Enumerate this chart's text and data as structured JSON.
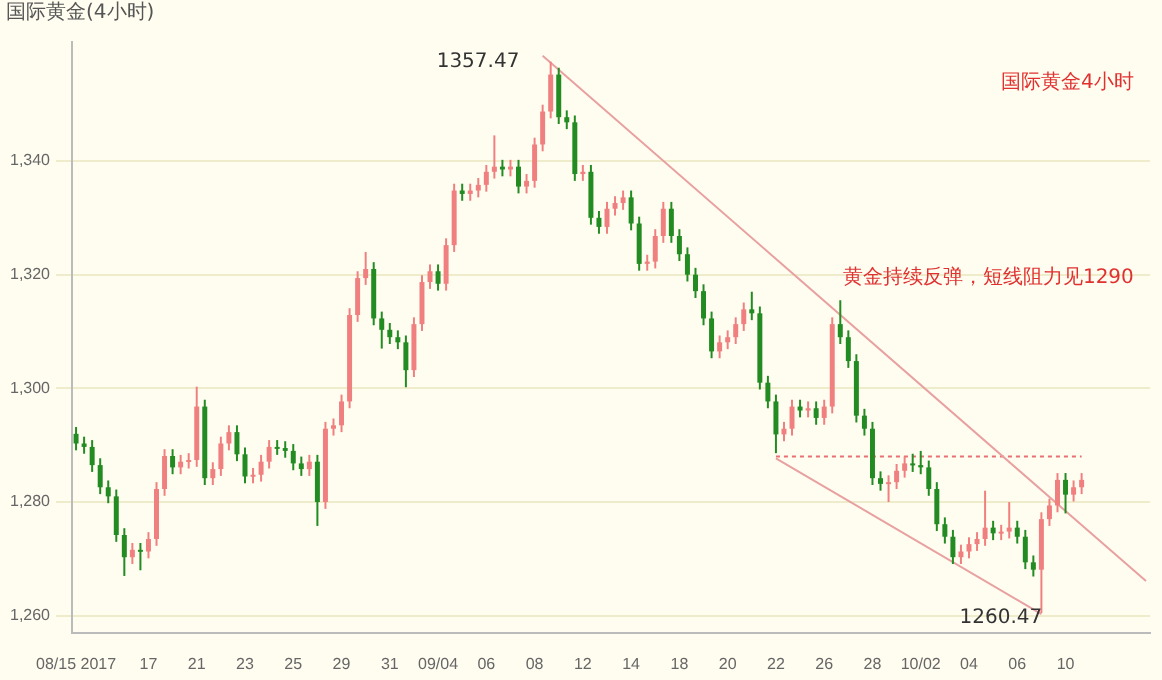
{
  "chart_data": {
    "type": "candlestick",
    "title": "国际黄金(4小时)",
    "categories": [
      "08/15 2017",
      null,
      null,
      null,
      null,
      null,
      null,
      null,
      null,
      "17",
      null,
      null,
      null,
      null,
      null,
      "21",
      null,
      null,
      null,
      null,
      null,
      "23",
      null,
      null,
      null,
      null,
      null,
      "25",
      null,
      null,
      null,
      null,
      null,
      "29",
      null,
      null,
      null,
      null,
      null,
      "31",
      null,
      null,
      null,
      null,
      null,
      "09/04",
      null,
      null,
      null,
      null,
      null,
      "06",
      null,
      null,
      null,
      null,
      null,
      "08",
      null,
      null,
      null,
      null,
      null,
      "12",
      null,
      null,
      null,
      null,
      null,
      "14",
      null,
      null,
      null,
      null,
      null,
      "18",
      null,
      null,
      null,
      null,
      null,
      "20",
      null,
      null,
      null,
      null,
      null,
      "22",
      null,
      null,
      null,
      null,
      null,
      "26",
      null,
      null,
      null,
      null,
      null,
      "28",
      null,
      null,
      null,
      null,
      null,
      "10/02",
      null,
      null,
      null,
      null,
      null,
      "04",
      null,
      null,
      null,
      null,
      null,
      "06",
      null,
      null,
      null,
      null,
      null,
      "10",
      null,
      null,
      null,
      null,
      null,
      null,
      null,
      null,
      null,
      null
    ],
    "series": [
      {
        "ohlc": [
          [
            1292.0,
            1293.2,
            1289.1,
            1290.3
          ],
          [
            1290.3,
            1291.5,
            1288.5,
            1289.7
          ],
          [
            1289.7,
            1290.9,
            1285.3,
            1286.5
          ],
          [
            1286.5,
            1287.7,
            1281.4,
            1282.6
          ],
          [
            1282.6,
            1283.8,
            1279.8,
            1281.0
          ],
          [
            1281.0,
            1282.2,
            1273.0,
            1274.2
          ],
          [
            1274.2,
            1275.4,
            1267.0,
            1270.3
          ],
          [
            1270.3,
            1272.8,
            1269.1,
            1271.6
          ],
          [
            1271.6,
            1272.8,
            1268.0,
            1271.3
          ],
          [
            1271.3,
            1274.7,
            1270.1,
            1273.5
          ],
          [
            1273.5,
            1283.5,
            1272.3,
            1282.3
          ],
          [
            1282.3,
            1289.3,
            1281.1,
            1288.1
          ],
          [
            1288.1,
            1289.3,
            1284.9,
            1286.1
          ],
          [
            1286.1,
            1288.3,
            1284.9,
            1287.1
          ],
          [
            1287.1,
            1288.6,
            1285.9,
            1287.4
          ],
          [
            1287.4,
            1300.3,
            1286.2,
            1296.8
          ],
          [
            1296.8,
            1298.0,
            1283.0,
            1284.2
          ],
          [
            1284.2,
            1287.0,
            1283.0,
            1285.8
          ],
          [
            1285.8,
            1291.5,
            1284.6,
            1290.3
          ],
          [
            1290.3,
            1293.5,
            1289.1,
            1292.3
          ],
          [
            1292.3,
            1293.5,
            1287.2,
            1288.4
          ],
          [
            1288.4,
            1289.6,
            1283.3,
            1284.5
          ],
          [
            1284.5,
            1286.0,
            1283.3,
            1284.8
          ],
          [
            1284.8,
            1288.3,
            1283.6,
            1287.1
          ],
          [
            1287.1,
            1290.9,
            1285.9,
            1289.7
          ],
          [
            1289.7,
            1290.9,
            1288.3,
            1289.5
          ],
          [
            1289.5,
            1290.7,
            1287.8,
            1289.0
          ],
          [
            1289.0,
            1290.2,
            1285.6,
            1286.8
          ],
          [
            1286.8,
            1288.0,
            1284.6,
            1285.8
          ],
          [
            1285.8,
            1288.3,
            1284.6,
            1287.1
          ],
          [
            1287.1,
            1288.3,
            1275.8,
            1280.0
          ],
          [
            1280.0,
            1294.1,
            1278.8,
            1292.9
          ],
          [
            1292.9,
            1294.7,
            1291.7,
            1293.5
          ],
          [
            1293.5,
            1298.9,
            1292.3,
            1297.7
          ],
          [
            1297.7,
            1314.1,
            1296.5,
            1312.9
          ],
          [
            1312.9,
            1320.6,
            1311.7,
            1319.4
          ],
          [
            1319.4,
            1324.0,
            1318.2,
            1321.0
          ],
          [
            1321.0,
            1322.2,
            1311.1,
            1312.3
          ],
          [
            1312.3,
            1313.5,
            1307.0,
            1310.3
          ],
          [
            1310.3,
            1311.5,
            1307.8,
            1309.0
          ],
          [
            1309.0,
            1310.2,
            1306.9,
            1308.1
          ],
          [
            1308.1,
            1309.3,
            1300.2,
            1303.2
          ],
          [
            1303.2,
            1312.5,
            1302.0,
            1311.3
          ],
          [
            1311.3,
            1319.9,
            1310.1,
            1318.7
          ],
          [
            1318.7,
            1321.8,
            1317.5,
            1320.6
          ],
          [
            1320.6,
            1321.8,
            1317.2,
            1318.4
          ],
          [
            1318.4,
            1326.4,
            1317.2,
            1325.2
          ],
          [
            1325.2,
            1336.0,
            1324.0,
            1334.8
          ],
          [
            1334.8,
            1336.0,
            1333.0,
            1334.2
          ],
          [
            1334.2,
            1336.0,
            1333.0,
            1334.8
          ],
          [
            1334.8,
            1337.0,
            1333.6,
            1335.8
          ],
          [
            1335.8,
            1339.3,
            1334.6,
            1338.1
          ],
          [
            1338.1,
            1344.5,
            1336.9,
            1339.0
          ],
          [
            1339.0,
            1340.2,
            1337.3,
            1338.5
          ],
          [
            1338.5,
            1340.2,
            1337.3,
            1339.0
          ],
          [
            1339.0,
            1340.2,
            1334.3,
            1335.5
          ],
          [
            1335.5,
            1337.7,
            1334.3,
            1336.5
          ],
          [
            1336.5,
            1344.1,
            1335.3,
            1342.9
          ],
          [
            1342.9,
            1349.9,
            1341.7,
            1348.7
          ],
          [
            1348.7,
            1357.47,
            1347.5,
            1355.2
          ],
          [
            1355.2,
            1356.4,
            1346.5,
            1347.7
          ],
          [
            1347.7,
            1348.9,
            1345.6,
            1346.8
          ],
          [
            1346.8,
            1348.0,
            1336.5,
            1337.7
          ],
          [
            1337.7,
            1339.3,
            1336.5,
            1338.1
          ],
          [
            1338.1,
            1339.3,
            1328.8,
            1330.0
          ],
          [
            1330.0,
            1331.2,
            1327.2,
            1328.4
          ],
          [
            1328.4,
            1332.8,
            1327.2,
            1331.6
          ],
          [
            1331.6,
            1333.8,
            1330.4,
            1332.6
          ],
          [
            1332.6,
            1334.8,
            1331.4,
            1333.6
          ],
          [
            1333.6,
            1334.8,
            1327.8,
            1329.0
          ],
          [
            1329.0,
            1330.2,
            1320.7,
            1321.9
          ],
          [
            1321.9,
            1323.5,
            1320.7,
            1322.3
          ],
          [
            1322.3,
            1328.0,
            1321.1,
            1326.8
          ],
          [
            1326.8,
            1332.8,
            1325.6,
            1331.6
          ],
          [
            1331.6,
            1332.8,
            1325.6,
            1326.8
          ],
          [
            1326.8,
            1328.0,
            1322.4,
            1323.6
          ],
          [
            1323.6,
            1324.8,
            1318.8,
            1320.0
          ],
          [
            1320.0,
            1321.2,
            1315.9,
            1317.1
          ],
          [
            1317.1,
            1318.3,
            1311.1,
            1312.3
          ],
          [
            1312.3,
            1313.5,
            1305.3,
            1306.5
          ],
          [
            1306.5,
            1309.3,
            1305.3,
            1308.1
          ],
          [
            1308.1,
            1310.2,
            1306.9,
            1309.0
          ],
          [
            1309.0,
            1312.5,
            1307.8,
            1311.3
          ],
          [
            1311.3,
            1315.1,
            1310.1,
            1313.9
          ],
          [
            1313.9,
            1317.0,
            1312.0,
            1313.2
          ],
          [
            1313.2,
            1314.4,
            1299.8,
            1301.0
          ],
          [
            1301.0,
            1302.2,
            1296.5,
            1297.7
          ],
          [
            1297.7,
            1298.9,
            1288.6,
            1291.9
          ],
          [
            1291.9,
            1294.1,
            1290.7,
            1292.9
          ],
          [
            1292.9,
            1298.0,
            1291.7,
            1296.8
          ],
          [
            1296.8,
            1298.0,
            1294.9,
            1296.1
          ],
          [
            1296.1,
            1297.7,
            1294.9,
            1296.5
          ],
          [
            1296.5,
            1297.7,
            1293.6,
            1294.8
          ],
          [
            1294.8,
            1298.0,
            1293.6,
            1296.8
          ],
          [
            1296.8,
            1312.5,
            1295.6,
            1311.3
          ],
          [
            1311.3,
            1315.5,
            1307.8,
            1309.0
          ],
          [
            1309.0,
            1310.2,
            1303.6,
            1304.8
          ],
          [
            1304.8,
            1306.0,
            1294.0,
            1295.2
          ],
          [
            1295.2,
            1296.4,
            1291.7,
            1292.9
          ],
          [
            1292.9,
            1294.1,
            1283.0,
            1284.2
          ],
          [
            1284.2,
            1285.4,
            1282.0,
            1283.2
          ],
          [
            1283.2,
            1284.7,
            1280.0,
            1283.5
          ],
          [
            1283.5,
            1286.7,
            1282.3,
            1285.5
          ],
          [
            1285.5,
            1288.0,
            1284.3,
            1286.8
          ],
          [
            1286.8,
            1288.5,
            1285.3,
            1286.5
          ],
          [
            1286.5,
            1289.0,
            1284.9,
            1286.1
          ],
          [
            1286.1,
            1287.3,
            1281.1,
            1282.3
          ],
          [
            1282.3,
            1283.5,
            1274.9,
            1276.1
          ],
          [
            1276.1,
            1277.3,
            1272.7,
            1273.9
          ],
          [
            1273.9,
            1275.1,
            1269.1,
            1270.3
          ],
          [
            1270.3,
            1272.5,
            1269.1,
            1271.3
          ],
          [
            1271.3,
            1273.8,
            1270.1,
            1272.6
          ],
          [
            1272.6,
            1274.7,
            1271.4,
            1273.5
          ],
          [
            1273.5,
            1282.0,
            1272.3,
            1275.5
          ],
          [
            1275.5,
            1276.7,
            1273.3,
            1274.5
          ],
          [
            1274.5,
            1276.0,
            1273.3,
            1274.8
          ],
          [
            1274.8,
            1280.0,
            1273.6,
            1275.5
          ],
          [
            1275.5,
            1276.7,
            1272.7,
            1273.9
          ],
          [
            1273.9,
            1275.1,
            1268.2,
            1269.4
          ],
          [
            1269.4,
            1270.6,
            1266.9,
            1268.1
          ],
          [
            1268.1,
            1278.2,
            1260.47,
            1277.0
          ],
          [
            1277.0,
            1280.6,
            1275.8,
            1279.4
          ],
          [
            1279.4,
            1285.1,
            1278.2,
            1283.9
          ],
          [
            1283.9,
            1285.1,
            1278.0,
            1281.3
          ],
          [
            1281.3,
            1283.8,
            1280.1,
            1282.6
          ],
          [
            1282.6,
            1285.1,
            1281.4,
            1283.9
          ],
          null,
          null,
          null,
          null,
          null,
          null,
          null,
          null
        ],
        "colors": [
          "#228b22",
          "#228b22",
          "#228b22",
          "#228b22",
          "#228b22",
          "#228b22",
          "#228b22",
          "#f08080",
          "#228b22",
          "#f08080",
          "#f08080",
          "#f08080",
          "#228b22",
          "#f08080",
          "#f08080",
          "#f08080",
          "#228b22",
          "#f08080",
          "#f08080",
          "#f08080",
          "#228b22",
          "#228b22",
          "#f08080",
          "#f08080",
          "#f08080",
          "#228b22",
          "#228b22",
          "#228b22",
          "#228b22",
          "#f08080",
          "#228b22",
          "#f08080",
          "#f08080",
          "#f08080",
          "#f08080",
          "#f08080",
          "#f08080",
          "#228b22",
          "#228b22",
          "#228b22",
          "#228b22",
          "#228b22",
          "#f08080",
          "#f08080",
          "#f08080",
          "#228b22",
          "#f08080",
          "#f08080",
          "#228b22",
          "#f08080",
          "#f08080",
          "#f08080",
          "#f08080",
          "#228b22",
          "#f08080",
          "#228b22",
          "#f08080",
          "#f08080",
          "#f08080",
          "#f08080",
          "#228b22",
          "#228b22",
          "#228b22",
          "#f08080",
          "#228b22",
          "#228b22",
          "#f08080",
          "#f08080",
          "#f08080",
          "#228b22",
          "#228b22",
          "#f08080",
          "#f08080",
          "#f08080",
          "#228b22",
          "#228b22",
          "#228b22",
          "#228b22",
          "#228b22",
          "#228b22",
          "#f08080",
          "#f08080",
          "#f08080",
          "#f08080",
          "#228b22",
          "#228b22",
          "#228b22",
          "#228b22",
          "#f08080",
          "#f08080",
          "#228b22",
          "#f08080",
          "#228b22",
          "#f08080",
          "#f08080",
          "#228b22",
          "#228b22",
          "#228b22",
          "#228b22",
          "#228b22",
          "#228b22",
          "#f08080",
          "#f08080",
          "#f08080",
          "#228b22",
          "#228b22",
          "#228b22",
          "#228b22",
          "#228b22",
          "#228b22",
          "#f08080",
          "#f08080",
          "#f08080",
          "#f08080",
          "#228b22",
          "#f08080",
          "#f08080",
          "#228b22",
          "#228b22",
          "#228b22",
          "#f08080",
          "#f08080",
          "#f08080",
          "#228b22",
          "#f08080",
          "#f08080",
          null,
          null,
          null,
          null,
          null,
          null,
          null,
          null
        ]
      },
      {
        "type": "line",
        "color": "#e8a0a0",
        "values": [
          null,
          null,
          null,
          null,
          null,
          null,
          null,
          null,
          null,
          null,
          null,
          null,
          null,
          null,
          null,
          null,
          null,
          null,
          null,
          null,
          null,
          null,
          null,
          null,
          null,
          null,
          null,
          null,
          null,
          null,
          null,
          null,
          null,
          null,
          null,
          null,
          null,
          null,
          null,
          null,
          null,
          null,
          null,
          null,
          null,
          null,
          null,
          null,
          null,
          null,
          null,
          null,
          null,
          null,
          null,
          null,
          null,
          null,
          1358.5,
          null,
          null,
          null,
          null,
          null,
          null,
          null,
          null,
          null,
          null,
          null,
          null,
          null,
          null,
          null,
          null,
          null,
          null,
          null,
          null,
          null,
          null,
          null,
          null,
          null,
          null,
          null,
          null,
          null,
          null,
          null,
          null,
          null,
          null,
          null,
          null,
          null,
          null,
          null,
          null,
          null,
          null,
          null,
          null,
          null,
          null,
          null,
          null,
          null,
          null,
          null,
          null,
          null,
          null,
          null,
          null,
          null,
          null,
          null,
          null,
          null,
          null,
          null,
          null,
          null,
          null,
          null,
          null,
          null,
          null,
          null,
          null,
          null,
          null,
          1266.1
        ]
      },
      {
        "type": "line",
        "color": "#e8a0a0",
        "values": [
          null,
          null,
          null,
          null,
          null,
          null,
          null,
          null,
          null,
          null,
          null,
          null,
          null,
          null,
          null,
          null,
          null,
          null,
          null,
          null,
          null,
          null,
          null,
          null,
          null,
          null,
          null,
          null,
          null,
          null,
          null,
          null,
          null,
          null,
          null,
          null,
          null,
          null,
          null,
          null,
          null,
          null,
          null,
          null,
          null,
          null,
          null,
          null,
          null,
          null,
          null,
          null,
          null,
          null,
          null,
          null,
          null,
          null,
          null,
          null,
          null,
          null,
          null,
          null,
          null,
          null,
          null,
          null,
          null,
          null,
          null,
          null,
          null,
          null,
          null,
          null,
          null,
          null,
          null,
          null,
          null,
          null,
          null,
          null,
          null,
          null,
          null,
          1287.7,
          null,
          null,
          null,
          null,
          null,
          null,
          null,
          null,
          null,
          null,
          null,
          null,
          null,
          null,
          null,
          null,
          null,
          null,
          null,
          null,
          null,
          null,
          null,
          null,
          null,
          null,
          null,
          null,
          null,
          null,
          null,
          null,
          1260.3,
          null,
          null,
          null,
          null,
          null,
          null,
          null,
          null,
          null,
          null,
          null,
          null,
          null
        ]
      },
      {
        "type": "line",
        "color": "#e87070",
        "line_style": "dotted",
        "values": [
          null,
          null,
          null,
          null,
          null,
          null,
          null,
          null,
          null,
          null,
          null,
          null,
          null,
          null,
          null,
          null,
          null,
          null,
          null,
          null,
          null,
          null,
          null,
          null,
          null,
          null,
          null,
          null,
          null,
          null,
          null,
          null,
          null,
          null,
          null,
          null,
          null,
          null,
          null,
          null,
          null,
          null,
          null,
          null,
          null,
          null,
          null,
          null,
          null,
          null,
          null,
          null,
          null,
          null,
          null,
          null,
          null,
          null,
          null,
          null,
          null,
          null,
          null,
          null,
          null,
          null,
          null,
          null,
          null,
          null,
          null,
          null,
          null,
          null,
          null,
          null,
          null,
          null,
          null,
          null,
          null,
          null,
          null,
          null,
          null,
          null,
          null,
          1288,
          null,
          null,
          null,
          null,
          null,
          null,
          null,
          null,
          null,
          null,
          null,
          null,
          null,
          null,
          null,
          null,
          null,
          null,
          null,
          null,
          null,
          null,
          null,
          null,
          null,
          null,
          null,
          null,
          null,
          null,
          null,
          null,
          null,
          null,
          null,
          null,
          null,
          1288,
          null,
          null,
          null,
          null,
          null,
          null,
          null,
          null
        ]
      }
    ],
    "ylim": [
      1257,
      1361
    ],
    "yticks": [
      {
        "value": 1260,
        "label": "1,260"
      },
      {
        "value": 1280,
        "label": "1,280"
      },
      {
        "value": 1300,
        "label": "1,300"
      },
      {
        "value": 1320,
        "label": "1,320"
      },
      {
        "value": 1340,
        "label": "1,340"
      }
    ],
    "grid": "y",
    "annotations": [
      "1357.47",
      "1260.47",
      "国际黄金4小时",
      "黄金持续反弹，短线阻力见1290"
    ]
  }
}
